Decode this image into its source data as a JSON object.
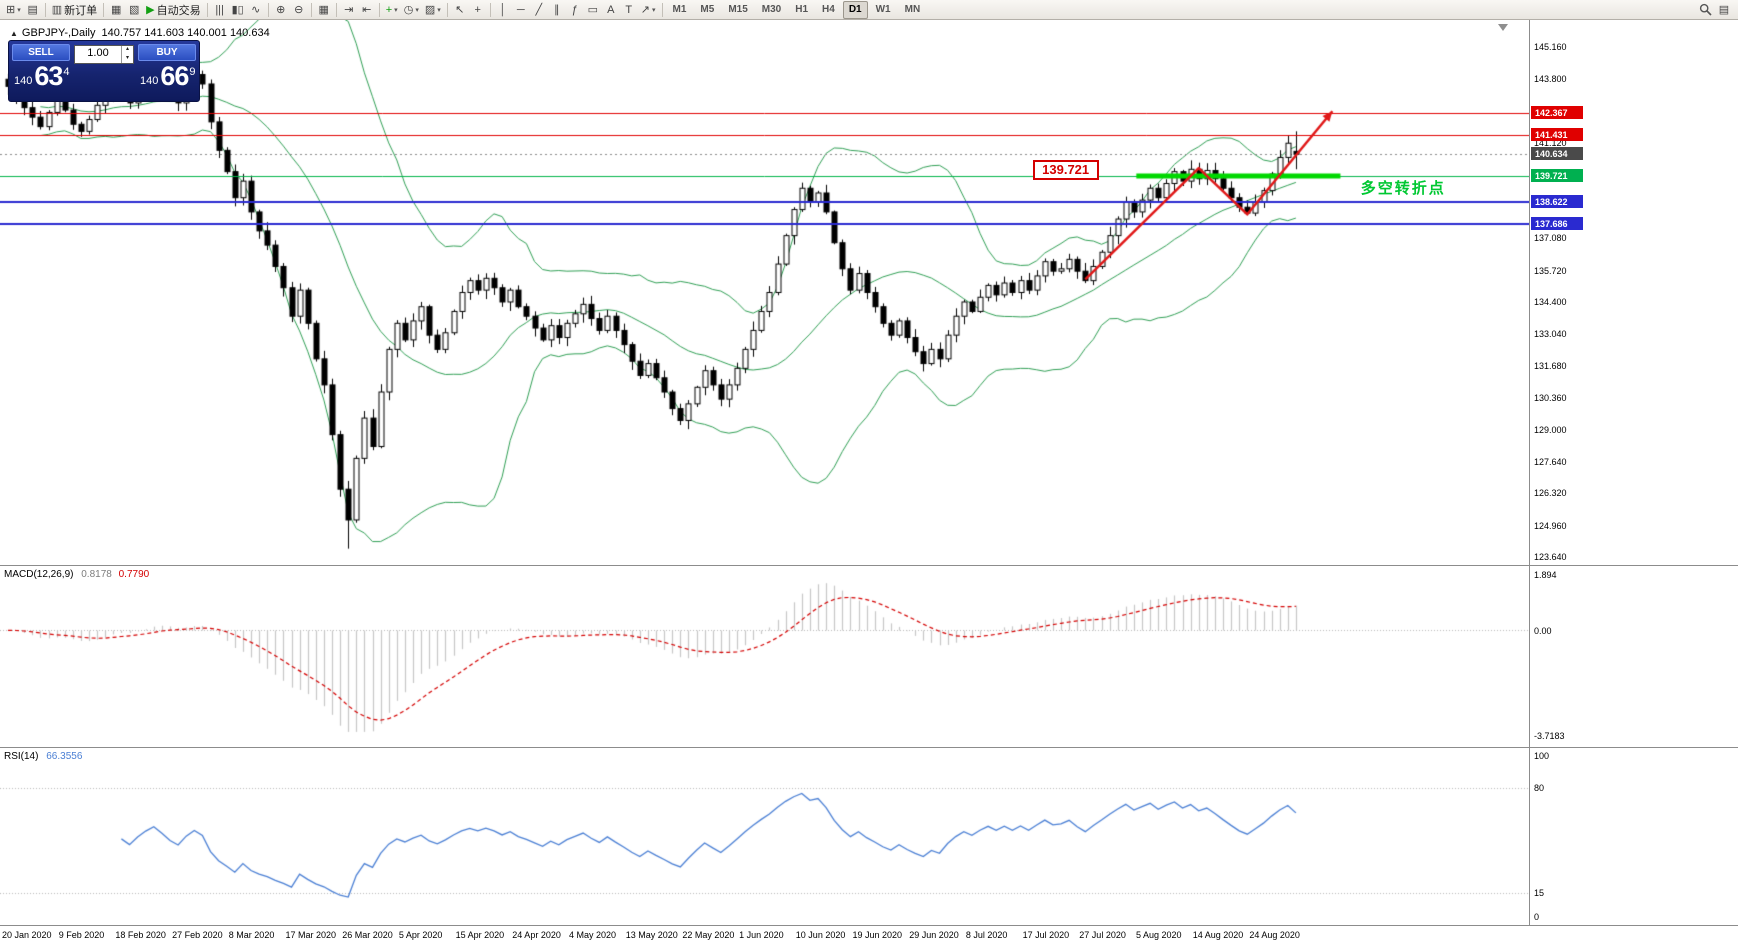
{
  "header": {
    "toggle": "▲",
    "symbol": "GBPJPY-,Daily",
    "ohlc": "140.757 141.603 140.001 140.634"
  },
  "trade_panel": {
    "sell_label": "SELL",
    "buy_label": "BUY",
    "volume": "1.00",
    "spin_up": "▴",
    "spin_down": "▾",
    "sell": {
      "small": "140",
      "big": "63",
      "sup": "4"
    },
    "buy": {
      "small": "140",
      "big": "66",
      "sup": "9"
    }
  },
  "toolbar": {
    "caret_glyph": "▾",
    "right_layout_glyph": "▤",
    "groups": [
      {
        "items": [
          {
            "name": "new-chart",
            "glyph": "⊞",
            "caret": true
          },
          {
            "name": "profiles",
            "glyph": "▤"
          }
        ]
      },
      {
        "items": [
          {
            "name": "new-order",
            "glyph": "▥",
            "label": "新订单"
          }
        ]
      },
      {
        "items": [
          {
            "name": "market-watch",
            "glyph": "▦"
          },
          {
            "name": "data-window",
            "glyph": "▧"
          },
          {
            "name": "expert-advisors",
            "glyph": "▶",
            "glyph_color": "#13a013",
            "label": "自动交易"
          }
        ]
      },
      {
        "items": [
          {
            "name": "bar-chart",
            "glyph": "|||"
          },
          {
            "name": "candlestick-chart",
            "glyph": "▮▯"
          },
          {
            "name": "line-chart",
            "glyph": "∿"
          }
        ]
      },
      {
        "items": [
          {
            "name": "zoom-in",
            "glyph": "⊕"
          },
          {
            "name": "zoom-out",
            "glyph": "⊖"
          }
        ]
      },
      {
        "items": [
          {
            "name": "tile-windows",
            "glyph": "▦"
          }
        ]
      },
      {
        "items": [
          {
            "name": "auto-scroll",
            "glyph": "⇥"
          },
          {
            "name": "chart-shift",
            "glyph": "⇤"
          }
        ]
      },
      {
        "items": [
          {
            "name": "indicators-list",
            "glyph": "+",
            "glyph_color": "#13a013",
            "caret": true
          },
          {
            "name": "periods",
            "glyph": "◷",
            "caret": true
          },
          {
            "name": "templates",
            "glyph": "▨",
            "caret": true
          }
        ]
      },
      {
        "items": [
          {
            "name": "cursor",
            "glyph": "↖"
          },
          {
            "name": "crosshair",
            "glyph": "+"
          }
        ]
      },
      {
        "items": [
          {
            "name": "vertical-line",
            "glyph": "│"
          },
          {
            "name": "horizontal-line",
            "glyph": "─"
          },
          {
            "name": "trendline",
            "glyph": "╱"
          },
          {
            "name": "equidistant-channel",
            "glyph": "∥"
          },
          {
            "name": "fibonacci",
            "glyph": "ƒ"
          },
          {
            "name": "shapes",
            "glyph": "▭"
          },
          {
            "name": "text",
            "glyph": "A"
          },
          {
            "name": "text-label",
            "glyph": "T"
          },
          {
            "name": "arrows",
            "glyph": "↗",
            "caret": true
          }
        ]
      }
    ],
    "timeframes": [
      {
        "label": "M1"
      },
      {
        "label": "M5"
      },
      {
        "label": "M15"
      },
      {
        "label": "M30"
      },
      {
        "label": "H1"
      },
      {
        "label": "H4"
      },
      {
        "label": "D1",
        "active": true
      },
      {
        "label": "W1"
      },
      {
        "label": "MN"
      }
    ]
  },
  "price_axis": {
    "plain": [
      {
        "text": "145.160",
        "price": 145.16
      },
      {
        "text": "143.800",
        "price": 143.8
      },
      {
        "text": "141.120",
        "price": 141.12
      },
      {
        "text": "137.080",
        "price": 137.08
      },
      {
        "text": "135.720",
        "price": 135.72
      },
      {
        "text": "134.400",
        "price": 134.4
      },
      {
        "text": "133.040",
        "price": 133.04
      },
      {
        "text": "131.680",
        "price": 131.68
      },
      {
        "text": "130.360",
        "price": 130.36
      },
      {
        "text": "129.000",
        "price": 129.0
      },
      {
        "text": "127.640",
        "price": 127.64
      },
      {
        "text": "126.320",
        "price": 126.32
      },
      {
        "text": "124.960",
        "price": 124.96
      },
      {
        "text": "123.640",
        "price": 123.64
      }
    ],
    "chips": [
      {
        "text": "142.367",
        "price": 142.367,
        "color": "#e00000"
      },
      {
        "text": "141.431",
        "price": 141.431,
        "color": "#e00000"
      },
      {
        "text": "140.634",
        "price": 140.634,
        "color": "#4a4a4a"
      },
      {
        "text": "139.721",
        "price": 139.721,
        "color": "#00b050"
      },
      {
        "text": "138.622",
        "price": 138.622,
        "color": "#2a2ad0"
      },
      {
        "text": "137.686",
        "price": 137.686,
        "color": "#2a2ad0"
      }
    ]
  },
  "indicators": {
    "macd": {
      "label": "MACD(12,26,9)",
      "value_main": "0.8178",
      "value_signal": "0.7790",
      "axis_max": "1.894",
      "axis_zero": "0.00",
      "axis_min": "-3.7183",
      "max": 1.894,
      "min": -3.7183,
      "fast": 12,
      "slow": 26,
      "signal": 9
    },
    "rsi": {
      "label": "RSI(14)",
      "value": "66.3556",
      "period": 14,
      "axis": {
        "top": "100",
        "bottom": "0"
      },
      "levels": [
        {
          "value": 80,
          "text": "80"
        },
        {
          "value": 15,
          "text": "15"
        }
      ]
    }
  },
  "annotations": {
    "flag_text": "139.721",
    "flag_index": 126.5,
    "flag_price": 139.95,
    "cn_text": "多空转折点",
    "cn_index": 167,
    "cn_price": 139.3,
    "cn_color": "#00c832"
  },
  "overlays": {
    "hlines": [
      {
        "price": 142.367,
        "color": "#e00000",
        "w": 1
      },
      {
        "price": 141.431,
        "color": "#e00000",
        "w": 1
      },
      {
        "price": 139.721,
        "color": "#00b44a",
        "w": 1
      },
      {
        "price": 138.622,
        "color": "#2a2ad0",
        "w": 2
      },
      {
        "price": 137.686,
        "color": "#2a2ad0",
        "w": 2
      }
    ],
    "current_price": {
      "price": 140.634,
      "color": "#8a8a8a"
    },
    "thick_segment": {
      "price": 139.721,
      "from": 139.3,
      "to": 164.5,
      "color": "#00d800",
      "w": 5
    },
    "trend_arrows": {
      "color": "#e01818",
      "w": 2.5,
      "points": [
        [
          133,
          135.35
        ],
        [
          147,
          140.05
        ],
        [
          153,
          138.1
        ],
        [
          163.5,
          142.45
        ]
      ]
    }
  },
  "chart_data": {
    "type": "candlestick",
    "symbol": "GBPJPY",
    "timeframe": "Daily",
    "first_open": 143.8,
    "closes": [
      143.5,
      143.1,
      142.6,
      142.2,
      141.8,
      142.4,
      143.0,
      142.5,
      141.9,
      141.6,
      142.1,
      142.7,
      143.2,
      143.7,
      143.3,
      142.8,
      143.4,
      143.9,
      144.3,
      143.8,
      143.2,
      142.8,
      143.5,
      144.0,
      143.6,
      142.0,
      140.8,
      139.9,
      138.8,
      139.5,
      138.2,
      137.4,
      136.8,
      135.9,
      135.0,
      133.8,
      134.9,
      133.5,
      132.0,
      130.9,
      128.8,
      126.5,
      125.2,
      127.8,
      129.5,
      128.3,
      130.6,
      132.4,
      133.5,
      132.8,
      133.6,
      134.2,
      133.0,
      132.4,
      133.1,
      134.0,
      134.8,
      135.3,
      134.9,
      135.4,
      135.0,
      134.4,
      134.9,
      134.2,
      133.8,
      133.3,
      132.8,
      133.4,
      132.9,
      133.5,
      133.9,
      134.3,
      133.7,
      133.2,
      133.8,
      133.2,
      132.6,
      131.9,
      131.3,
      131.8,
      131.2,
      130.6,
      129.9,
      129.4,
      130.1,
      130.8,
      131.5,
      130.9,
      130.3,
      130.9,
      131.6,
      132.4,
      133.2,
      134.0,
      134.8,
      136.0,
      137.2,
      138.3,
      139.2,
      138.6,
      139.0,
      138.2,
      136.9,
      135.8,
      134.9,
      135.6,
      134.8,
      134.2,
      133.5,
      133.0,
      133.6,
      132.9,
      132.3,
      131.8,
      132.4,
      132.0,
      133.0,
      133.8,
      134.4,
      134.0,
      134.6,
      135.1,
      134.7,
      135.2,
      134.8,
      135.3,
      134.9,
      135.5,
      136.1,
      135.7,
      135.8,
      136.2,
      135.7,
      135.3,
      135.9,
      136.5,
      137.2,
      137.9,
      138.6,
      138.2,
      138.7,
      139.2,
      138.8,
      139.4,
      139.9,
      139.5,
      140.0,
      139.6,
      139.95,
      139.6,
      139.2,
      138.8,
      138.4,
      138.15,
      138.6,
      139.1,
      139.8,
      140.5,
      141.1,
      140.634
    ],
    "overrides": {
      "42": {
        "low": 123.99
      },
      "159": {
        "open": 140.757,
        "high": 141.603,
        "low": 140.001
      }
    },
    "bollinger": {
      "period": 20,
      "deviation": 2
    },
    "dates": [
      "20 Jan 2020",
      "9 Feb 2020",
      "18 Feb 2020",
      "27 Feb 2020",
      "8 Mar 2020",
      "17 Mar 2020",
      "26 Mar 2020",
      "5 Apr 2020",
      "15 Apr 2020",
      "24 Apr 2020",
      "4 May 2020",
      "13 May 2020",
      "22 May 2020",
      "1 Jun 2020",
      "10 Jun 2020",
      "19 Jun 2020",
      "29 Jun 2020",
      "8 Jul 2020",
      "17 Jul 2020",
      "27 Jul 2020",
      "5 Aug 2020",
      "14 Aug 2020",
      "24 Aug 2020"
    ],
    "date_step": 7
  },
  "colors": {
    "up": "#ffffff",
    "down": "#000000",
    "outline": "#000000",
    "band": "#2e9e53",
    "macd_hist": "#c6c6c6",
    "macd_signal": "#d40000",
    "rsi_line": "#4a7fd4"
  }
}
